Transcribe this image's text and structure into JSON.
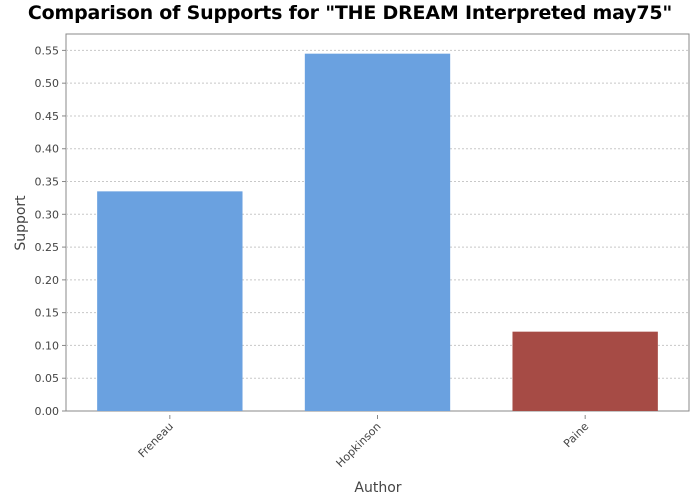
{
  "chart_data": {
    "type": "bar",
    "title": "Comparison of Supports for \"THE DREAM Interpreted may75\"",
    "xlabel": "Author",
    "ylabel": "Support",
    "categories": [
      "Freneau",
      "Hopkinson",
      "Paine"
    ],
    "values": [
      0.335,
      0.545,
      0.121
    ],
    "bar_colors": [
      "#6aa1e0",
      "#6aa1e0",
      "#a64b45"
    ],
    "ylim": [
      0,
      0.575
    ],
    "yticks": [
      "0.00",
      "0.05",
      "0.10",
      "0.15",
      "0.20",
      "0.25",
      "0.30",
      "0.35",
      "0.40",
      "0.45",
      "0.50",
      "0.55"
    ],
    "grid": true,
    "legend": "none"
  }
}
